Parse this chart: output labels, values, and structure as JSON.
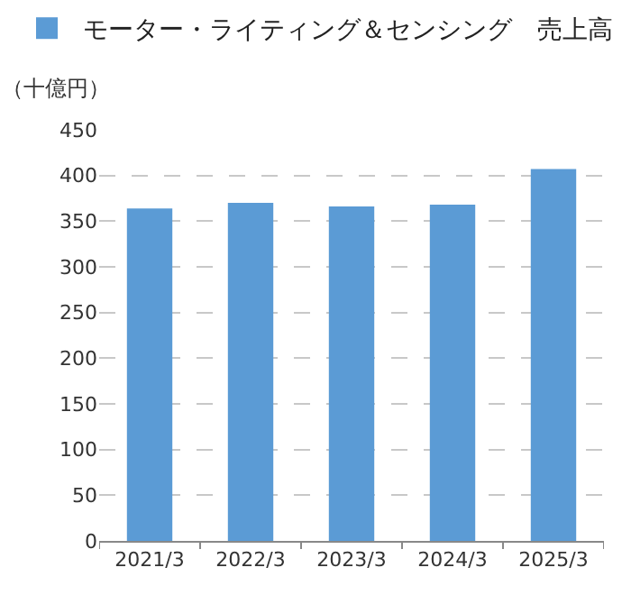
{
  "chart_data": {
    "type": "bar",
    "categories": [
      "2021/3",
      "2022/3",
      "2023/3",
      "2024/3",
      "2025/3"
    ],
    "series": [
      {
        "name": "モーター・ライティング＆センシング　売上高",
        "color": "#5b9bd5",
        "values": [
          364,
          370,
          366,
          368,
          407
        ]
      }
    ],
    "ylabel": "（十億円）",
    "ylim": [
      0,
      450
    ],
    "yticks": [
      0,
      50,
      100,
      150,
      200,
      250,
      300,
      350,
      400,
      450
    ],
    "grid": "y",
    "legend": "top"
  }
}
